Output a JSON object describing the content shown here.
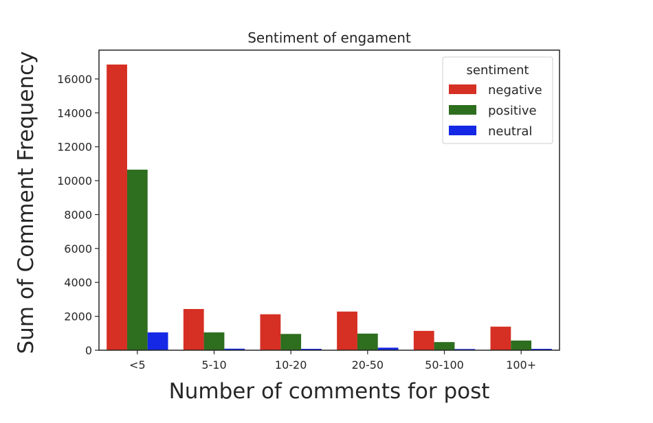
{
  "chart_data": {
    "type": "bar",
    "title": "Sentiment of engament",
    "xlabel": "Number of comments for post",
    "ylabel": "Sum of Comment Frequency",
    "categories": [
      "<5",
      "5-10",
      "10-20",
      "20-50",
      "50-100",
      "100+"
    ],
    "series": [
      {
        "name": "negative",
        "color": "#d62f23",
        "values": [
          16850,
          2430,
          2120,
          2280,
          1140,
          1390
        ]
      },
      {
        "name": "positive",
        "color": "#2d6e1f",
        "values": [
          10650,
          1050,
          960,
          980,
          480,
          570
        ]
      },
      {
        "name": "neutral",
        "color": "#1428e6",
        "values": [
          1050,
          90,
          80,
          150,
          70,
          80
        ]
      }
    ],
    "ylim": [
      0,
      17700
    ],
    "yticks": [
      0,
      2000,
      4000,
      6000,
      8000,
      10000,
      12000,
      14000,
      16000
    ],
    "grid": false,
    "legend": {
      "title": "sentiment",
      "position": "top-right"
    }
  }
}
